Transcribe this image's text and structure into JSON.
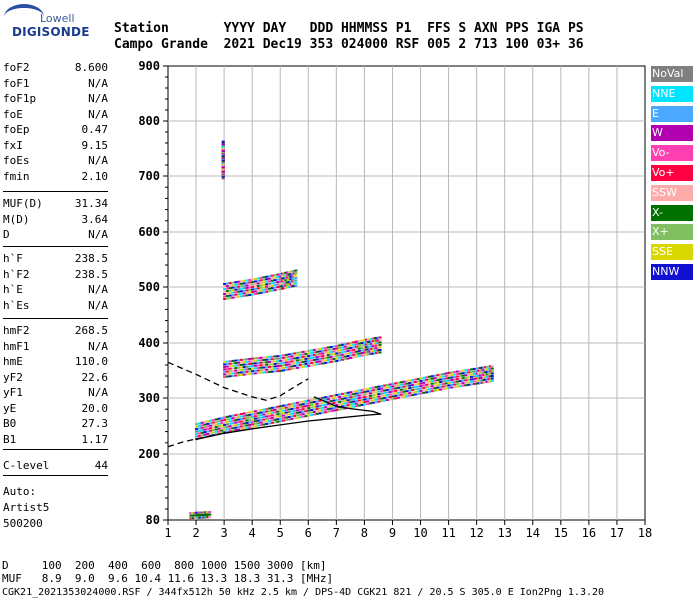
{
  "logo": {
    "line1": "Lowell",
    "line2": "DIGISONDE"
  },
  "header": {
    "labels": "Station       YYYY DAY   DDD HHMMSS P1  FFS S AXN PPS IGA PS",
    "values": "Campo Grande  2021 Dec19 353 024000 RSF 005 2 713 100 03+ 36"
  },
  "params": {
    "group1": [
      {
        "name": "foF2",
        "value": "8.600"
      },
      {
        "name": "foF1",
        "value": "N/A"
      },
      {
        "name": "foF1p",
        "value": "N/A"
      },
      {
        "name": "foE",
        "value": "N/A"
      },
      {
        "name": "foEp",
        "value": "0.47"
      },
      {
        "name": "fxI",
        "value": "9.15"
      },
      {
        "name": "foEs",
        "value": "N/A"
      },
      {
        "name": "fmin",
        "value": "2.10"
      }
    ],
    "group2": [
      {
        "name": "MUF(D)",
        "value": "31.34"
      },
      {
        "name": "M(D)",
        "value": "3.64"
      },
      {
        "name": "D",
        "value": "N/A"
      }
    ],
    "group3": [
      {
        "name": "h`F",
        "value": "238.5"
      },
      {
        "name": "h`F2",
        "value": "238.5"
      },
      {
        "name": "h`E",
        "value": "N/A"
      },
      {
        "name": "h`Es",
        "value": "N/A"
      }
    ],
    "group4": [
      {
        "name": "hmF2",
        "value": "268.5"
      },
      {
        "name": "hmF1",
        "value": "N/A"
      },
      {
        "name": "hmE",
        "value": "110.0"
      },
      {
        "name": "yF2",
        "value": "22.6"
      },
      {
        "name": "yF1",
        "value": "N/A"
      },
      {
        "name": "yE",
        "value": "20.0"
      },
      {
        "name": "B0",
        "value": "27.3"
      },
      {
        "name": "B1",
        "value": "1.17"
      }
    ],
    "group5": [
      {
        "name": "C-level",
        "value": "44"
      }
    ],
    "auto": [
      "Auto:",
      "Artist5",
      "500200"
    ]
  },
  "legend": [
    {
      "label": "NoVal",
      "color": "#808080"
    },
    {
      "label": "NNE",
      "color": "#00e5ff"
    },
    {
      "label": "E",
      "color": "#4aa8ff"
    },
    {
      "label": "W",
      "color": "#b000b0"
    },
    {
      "label": "Vo-",
      "color": "#ff40b0"
    },
    {
      "label": "Vo+",
      "color": "#ff0040"
    },
    {
      "label": "SSW",
      "color": "#ffaaaa"
    },
    {
      "label": "X-",
      "color": "#007000"
    },
    {
      "label": "X+",
      "color": "#80c060"
    },
    {
      "label": "SSE",
      "color": "#d8d800"
    },
    {
      "label": "NNW",
      "color": "#1010d0"
    }
  ],
  "chart_data": {
    "type": "scatter",
    "title": "",
    "xlabel": "",
    "ylabel": "",
    "xlim": [
      1,
      18
    ],
    "ylim": [
      80,
      900
    ],
    "x_ticks": [
      1,
      2,
      3,
      4,
      5,
      6,
      7,
      8,
      9,
      10,
      11,
      12,
      13,
      14,
      15,
      16,
      17,
      18
    ],
    "y_ticks": [
      80,
      200,
      300,
      400,
      500,
      600,
      700,
      800,
      900
    ],
    "grid": true,
    "traces": [
      {
        "name": "trace-F2-main",
        "color": "mixed",
        "points": [
          [
            2.0,
            240
          ],
          [
            3.0,
            252
          ],
          [
            4.0,
            262
          ],
          [
            5.0,
            272
          ],
          [
            6.0,
            282
          ],
          [
            7.0,
            292
          ],
          [
            8.0,
            302
          ],
          [
            9.0,
            312
          ],
          [
            10.0,
            322
          ],
          [
            11.0,
            332
          ],
          [
            12.0,
            340
          ],
          [
            12.6,
            345
          ]
        ]
      },
      {
        "name": "trace-second-hop",
        "color": "mixed",
        "points": [
          [
            3.0,
            352
          ],
          [
            4.0,
            358
          ],
          [
            5.0,
            363
          ],
          [
            6.0,
            372
          ],
          [
            7.0,
            381
          ],
          [
            8.0,
            392
          ],
          [
            8.6,
            397
          ]
        ]
      },
      {
        "name": "trace-third-hop",
        "color": "mixed",
        "points": [
          [
            3.0,
            492
          ],
          [
            4.0,
            500
          ],
          [
            5.0,
            510
          ],
          [
            5.6,
            517
          ]
        ]
      },
      {
        "name": "trace-vertical-top",
        "color": "#b000b0",
        "points": [
          [
            2.95,
            700
          ],
          [
            2.95,
            720
          ],
          [
            2.95,
            740
          ],
          [
            2.95,
            760
          ]
        ]
      },
      {
        "name": "trace-low-x",
        "color": "#007000",
        "points": [
          [
            1.8,
            88
          ],
          [
            2.2,
            89
          ],
          [
            2.5,
            90
          ]
        ]
      }
    ],
    "profile_curves": [
      {
        "name": "upper-dashed-profile",
        "style": "dashed",
        "points": [
          [
            1.0,
            365
          ],
          [
            2.0,
            343
          ],
          [
            3.0,
            319
          ],
          [
            4.0,
            302
          ],
          [
            4.5,
            296
          ],
          [
            5.0,
            304
          ],
          [
            5.5,
            320
          ],
          [
            6.0,
            335
          ]
        ]
      },
      {
        "name": "lower-dashed-profile",
        "style": "dashed",
        "points": [
          [
            1.0,
            213
          ],
          [
            1.5,
            221
          ],
          [
            2.0,
            227
          ],
          [
            2.5,
            232
          ]
        ]
      },
      {
        "name": "solid-profile",
        "style": "solid",
        "points": [
          [
            2.0,
            226
          ],
          [
            3.0,
            237
          ],
          [
            4.0,
            245
          ],
          [
            5.0,
            252
          ],
          [
            6.0,
            259
          ],
          [
            7.0,
            264
          ],
          [
            8.0,
            269
          ],
          [
            8.5,
            271
          ],
          [
            8.6,
            271
          ],
          [
            8.3,
            276
          ],
          [
            7.5,
            281
          ],
          [
            7.0,
            285
          ],
          [
            6.5,
            296
          ],
          [
            6.2,
            302
          ]
        ]
      }
    ]
  },
  "footer": {
    "line1": "D     100  200  400  600  800 1000 1500 3000 [km]",
    "line2": "MUF   8.9  9.0  9.6 10.4 11.6 13.3 18.3 31.3 [MHz]",
    "line3": "CGK21_2021353024000.RSF / 344fx512h 50 kHz 2.5 km / DPS-4D CGK21 821 / 20.5 S 305.0 E Ion2Png 1.3.20"
  }
}
